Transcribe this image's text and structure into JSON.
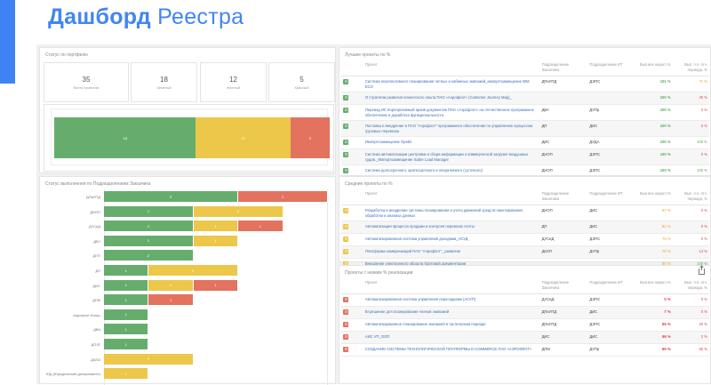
{
  "header": {
    "title_bold": "Дашборд",
    "title_rest": "Реестра"
  },
  "colors": {
    "accent": "#4285f4",
    "green": "#66ad6d",
    "yellow": "#ecc74a",
    "red": "#e3725f"
  },
  "portfolio": {
    "title": "Статус по портфелю",
    "kpis": [
      {
        "value": "35",
        "label": "Всего проектов"
      },
      {
        "value": "18",
        "label": "Зеленый"
      },
      {
        "value": "12",
        "label": "Желтый"
      },
      {
        "value": "5",
        "label": "Красный"
      }
    ],
    "stack": [
      {
        "status": "green",
        "value": 18,
        "label": "18"
      },
      {
        "status": "yellow",
        "value": 12,
        "label": "12"
      },
      {
        "status": "red",
        "value": 5,
        "label": "5"
      }
    ]
  },
  "chart_data": {
    "type": "bar",
    "orientation": "horizontal-stacked",
    "title": "Статус выполнения по Подразделениям Заказчика",
    "categories": [
      "ДПиУПД",
      "ДНОП",
      "ДУСиД",
      "ДБУ",
      "ДПП",
      "ДП",
      "ДИС",
      "ДПМ",
      "Аэрофлот Бонус",
      "ДВА",
      "ДПЛГ",
      "ДАПА",
      "ЮД (Юридический департамент)"
    ],
    "series": [
      {
        "name": "Зеленый",
        "color": "#66ad6d",
        "values": [
          3,
          2,
          2,
          2,
          2,
          1,
          1,
          1,
          1,
          1,
          1,
          0,
          0
        ]
      },
      {
        "name": "Желтый",
        "color": "#ecc74a",
        "values": [
          0,
          2,
          1,
          1,
          0,
          2,
          1,
          0,
          0,
          0,
          0,
          2,
          1
        ]
      },
      {
        "name": "Красный",
        "color": "#e3725f",
        "values": [
          2,
          0,
          1,
          0,
          0,
          0,
          1,
          1,
          0,
          0,
          0,
          0,
          0
        ]
      }
    ],
    "xlim": [
      0,
      5
    ]
  },
  "columns": {
    "project": "Проект",
    "customer": "Подразделение Заказчика",
    "it": "Подразделение ИТ",
    "cum": "Вып.вех нараст.%",
    "period": "Вып. п.п. отч. периода, %"
  },
  "best": {
    "title": "Лучшие проекты по %",
    "rows": [
      {
        "name": "Система перспективного планирования летных и кабинных экипажей_импортозамещение IBM ECO",
        "customer": "ДПиУПД",
        "it": "ДЭПС",
        "cum": "101 %",
        "period": "71 %",
        "pc": "y"
      },
      {
        "name": "О стратегии развития клиентского опыта ПАО «Аэрофлот» (Customer Journey Map)_",
        "customer": "",
        "it": "",
        "cum": "100 %",
        "period": "40 %",
        "pc": "rd"
      },
      {
        "name": "Перевод ИС Корпоративный архив документов ПАО «Аэрофлот» на отечественное программное обеспечение и доработка функциональности",
        "customer": "ДБУ",
        "it": "ДУПр",
        "cum": "100 %",
        "period": "0 %",
        "pc": "rd"
      },
      {
        "name": "Поставка и внедрение в ПАО \"Аэрофлот\" программного обеспечения по управлению процессом грузовых перевозок",
        "customer": "ДП",
        "it": "ДИС",
        "cum": "100 %",
        "period": "0 %",
        "pc": "rd"
      },
      {
        "name": "Импортозамещение OpeBI",
        "customer": "ДИС",
        "it": "ДУДА",
        "cum": "100 %",
        "period": "100 %",
        "pc": "gl"
      },
      {
        "name": "Система автоматизации центровки и сбора информации о коммерческой загрузке воздушных судов._Импортозамещение Sabre Load Manager",
        "customer": "ДНОП",
        "it": "ДЭПС",
        "cum": "100 %",
        "period": "0 %",
        "pc": "rd"
      },
      {
        "name": "Система долгосрочного, краткосрочного и оперативного (суточного)",
        "customer": "ДНОП",
        "it": "ДЭПС",
        "cum": "100 %",
        "period": "100 %",
        "pc": "gl"
      }
    ]
  },
  "mid": {
    "title": "Средние проекты по %",
    "rows": [
      {
        "name": "Разработка и внедрение системы планирования и учета движений средств пакетирования, обработки и анализа данных",
        "customer": "ДНОП",
        "it": "ДИС",
        "cum": "87 %",
        "period": "0 %",
        "pc": "rd"
      },
      {
        "name": "Автоматизация процесса продажи и контроля перевозок почты",
        "customer": "ДП",
        "it": "ДИС",
        "cum": "82 %",
        "period": "0 %",
        "pc": "rd"
      },
      {
        "name": "Автоматизированная система управления доходами_АСУД",
        "customer": "ДУСиД",
        "it": "ДЭПС",
        "cum": "75 %",
        "period": "0 %",
        "pc": "rd"
      },
      {
        "name": "Платформа коммуникаций ПАО \"Аэрофлот\"_ развитие",
        "customer": "ДКОП",
        "it": "ДУПр",
        "cum": "76 %",
        "period": "13 %",
        "pc": "rd"
      },
      {
        "name": "Внедрение электронного оборота бортовой документации",
        "customer": "",
        "it": "",
        "cum": "80 %",
        "period": "100 %",
        "pc": "gl"
      }
    ]
  },
  "low": {
    "title": "Проекты с низким % реализации",
    "rows": [
      {
        "name": "Автоматизированная система управления пересадками (АСУП)",
        "customer": "ДУСиД",
        "it": "ДЭПС",
        "cum": "0 %",
        "period": "0 %",
        "pc": "rd"
      },
      {
        "name": "BI решение для планирования членов экипажей",
        "customer": "ДПиУПД",
        "it": "ДИС",
        "cum": "7 %",
        "period": "0 %",
        "pc": "rd"
      },
      {
        "name": "Автоматизированное планирование экипажей в тактическом периоде",
        "customer": "ДПиУПД",
        "it": "ДЭПС",
        "cum": "55 %",
        "period": "20 %",
        "pc": "rd"
      },
      {
        "name": "АИС УП_ООП",
        "customer": "ДИС",
        "it": "ДИС",
        "cum": "56 %",
        "period": "2 %",
        "pc": "rd"
      },
      {
        "name": "СОЗДАНИЕ СИСТЕМЫ ТЕХНОЛОГИЧЕСКОЙ ПЛАТФОРМЫ E-COMMERCE ПАО «АЭРОФЛОТ»",
        "customer": "ДПМ",
        "it": "ДУПр",
        "cum": "69 %",
        "period": "65 %",
        "pc": "rd"
      }
    ]
  }
}
